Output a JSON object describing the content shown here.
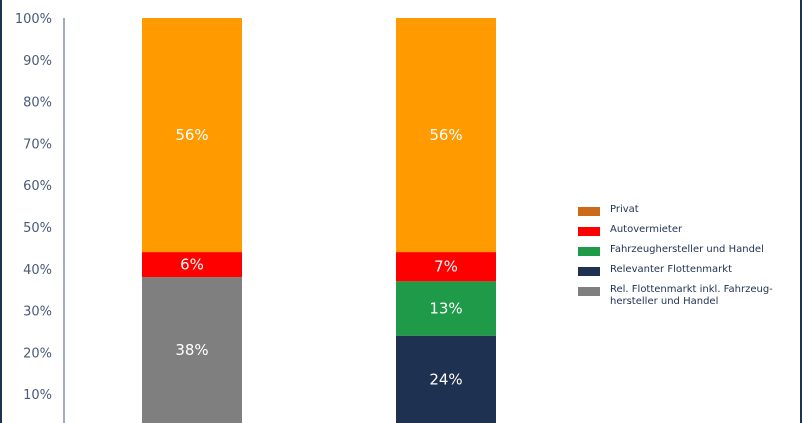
{
  "chart_data": {
    "type": "bar",
    "stacked": true,
    "title": "",
    "xlabel": "",
    "ylabel": "",
    "ylim": [
      0,
      100
    ],
    "y_ticks": [
      "10%",
      "20%",
      "30%",
      "40%",
      "50%",
      "60%",
      "70%",
      "80%",
      "90%",
      "100%"
    ],
    "y_tick_values": [
      10,
      20,
      30,
      40,
      50,
      60,
      70,
      80,
      90,
      100
    ],
    "grid": false,
    "legend_position": "right",
    "bars": [
      {
        "segments": [
          {
            "series": "Rel. Flottenmarkt inkl. Fahrzeughersteller und Handel",
            "value": 38,
            "label": "38%"
          },
          {
            "series": "Autovermieter",
            "value": 6,
            "label": "6%"
          },
          {
            "series": "Privat",
            "value": 56,
            "label": "56%"
          }
        ]
      },
      {
        "segments": [
          {
            "series": "Relevanter Flottenmarkt",
            "value": 24,
            "label": "24%"
          },
          {
            "series": "Fahrzeughersteller und Handel",
            "value": 13,
            "label": "13%"
          },
          {
            "series": "Autovermieter",
            "value": 7,
            "label": "7%"
          },
          {
            "series": "Privat",
            "value": 56,
            "label": "56%"
          }
        ]
      }
    ],
    "legend": [
      {
        "name": "Privat",
        "color": "#cc6a1c"
      },
      {
        "name": "Autovermieter",
        "color": "#ff0000"
      },
      {
        "name": "Fahrzeughersteller und Handel",
        "color": "#1f9a48"
      },
      {
        "name": "Relevanter Flottenmarkt",
        "color": "#1f3150"
      },
      {
        "name": "Rel. Flottenmarkt inkl. Fahrzeug-hersteller und Handel",
        "color": "#7f7f7f"
      }
    ],
    "series_colors": {
      "Privat": "#ff9a00",
      "Autovermieter": "#ff0000",
      "Fahrzeughersteller und Handel": "#1f9a48",
      "Relevanter Flottenmarkt": "#1f3150",
      "Rel. Flottenmarkt inkl. Fahrzeughersteller und Handel": "#7f7f7f"
    },
    "axis_color": "#4a5a78"
  }
}
